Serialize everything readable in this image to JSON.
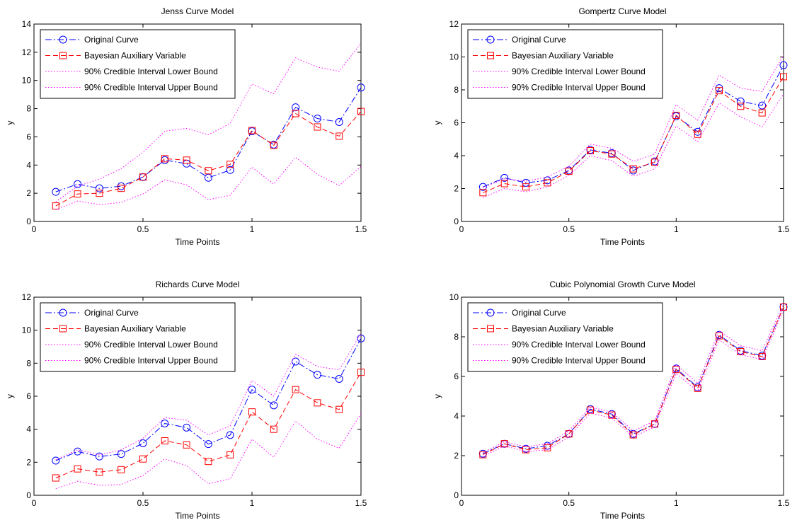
{
  "chart_data": [
    {
      "type": "line",
      "title": "Jenss Curve Model",
      "xlabel": "Time Points",
      "ylabel": "y",
      "xlim": [
        0,
        1.5
      ],
      "ylim": [
        0,
        14
      ],
      "xticks": [
        0,
        0.5,
        1,
        1.5
      ],
      "xtick_labels": [
        "0",
        "0.5",
        "1",
        "1.5"
      ],
      "yticks": [
        0,
        2,
        4,
        6,
        8,
        10,
        12,
        14
      ],
      "ytick_labels": [
        "0",
        "2",
        "4",
        "6",
        "8",
        "10",
        "12",
        "14"
      ],
      "grid": false,
      "legend_position": "top-left",
      "x": [
        0.1,
        0.2,
        0.3,
        0.4,
        0.5,
        0.6,
        0.7,
        0.8,
        0.9,
        1.0,
        1.1,
        1.2,
        1.3,
        1.4,
        1.5
      ],
      "series": [
        {
          "name": "Original Curve",
          "color": "#0000ff",
          "style": "dashdot",
          "marker": "circle",
          "values": [
            2.1,
            2.65,
            2.35,
            2.5,
            3.15,
            4.35,
            4.1,
            3.1,
            3.65,
            6.4,
            5.45,
            8.1,
            7.3,
            7.05,
            9.5
          ]
        },
        {
          "name": "Bayesian Auxiliary Variable",
          "color": "#ff0000",
          "style": "dashed",
          "marker": "square",
          "values": [
            1.1,
            1.95,
            2.0,
            2.35,
            3.15,
            4.45,
            4.35,
            3.6,
            4.05,
            6.45,
            5.4,
            7.65,
            6.7,
            6.05,
            7.8
          ]
        },
        {
          "name": "90% Credible Interval Lower Bound",
          "color": "#ff00ff",
          "style": "dotted",
          "marker": "none",
          "values": [
            0.85,
            1.45,
            1.2,
            1.35,
            1.95,
            2.95,
            2.6,
            1.55,
            1.85,
            3.85,
            2.65,
            4.55,
            3.35,
            2.55,
            3.9
          ]
        },
        {
          "name": "90% Credible Interval Upper Bound",
          "color": "#ff00ff",
          "style": "dotted",
          "marker": "none",
          "values": [
            1.4,
            2.5,
            3.0,
            3.75,
            4.9,
            6.4,
            6.6,
            6.15,
            6.95,
            9.75,
            9.05,
            11.6,
            10.95,
            10.65,
            12.65
          ]
        }
      ]
    },
    {
      "type": "line",
      "title": "Gompertz Curve Model",
      "xlabel": "Time Points",
      "ylabel": "y",
      "xlim": [
        0,
        1.5
      ],
      "ylim": [
        0,
        12
      ],
      "xticks": [
        0,
        0.5,
        1,
        1.5
      ],
      "xtick_labels": [
        "0",
        "0.5",
        "1",
        "1.5"
      ],
      "yticks": [
        0,
        2,
        4,
        6,
        8,
        10,
        12
      ],
      "ytick_labels": [
        "0",
        "2",
        "4",
        "6",
        "8",
        "10",
        "12"
      ],
      "grid": false,
      "legend_position": "top-left",
      "x": [
        0.1,
        0.2,
        0.3,
        0.4,
        0.5,
        0.6,
        0.7,
        0.8,
        0.9,
        1.0,
        1.1,
        1.2,
        1.3,
        1.4,
        1.5
      ],
      "series": [
        {
          "name": "Original Curve",
          "color": "#0000ff",
          "style": "dashdot",
          "marker": "circle",
          "values": [
            2.1,
            2.65,
            2.35,
            2.5,
            3.1,
            4.35,
            4.15,
            3.1,
            3.65,
            6.4,
            5.45,
            8.1,
            7.3,
            7.05,
            9.5
          ]
        },
        {
          "name": "Bayesian Auxiliary Variable",
          "color": "#ff0000",
          "style": "dashed",
          "marker": "square",
          "values": [
            1.75,
            2.3,
            2.1,
            2.35,
            3.05,
            4.3,
            4.1,
            3.2,
            3.6,
            6.45,
            5.3,
            7.95,
            7.0,
            6.6,
            8.8
          ]
        },
        {
          "name": "90% Credible Interval Lower Bound",
          "color": "#ff00ff",
          "style": "dotted",
          "marker": "none",
          "values": [
            1.45,
            2.0,
            1.8,
            2.1,
            2.8,
            4.0,
            3.7,
            2.75,
            3.2,
            5.8,
            4.85,
            7.2,
            6.35,
            5.75,
            7.75
          ]
        },
        {
          "name": "90% Credible Interval Upper Bound",
          "color": "#ff00ff",
          "style": "dotted",
          "marker": "none",
          "values": [
            2.05,
            2.6,
            2.45,
            2.7,
            3.35,
            4.7,
            4.45,
            3.65,
            4.1,
            7.1,
            6.15,
            8.9,
            8.1,
            7.9,
            10.1
          ]
        }
      ]
    },
    {
      "type": "line",
      "title": "Richards Curve Model",
      "xlabel": "Time Points",
      "ylabel": "y",
      "xlim": [
        0,
        1.5
      ],
      "ylim": [
        0,
        12
      ],
      "xticks": [
        0,
        0.5,
        1,
        1.5
      ],
      "xtick_labels": [
        "0",
        "0.5",
        "1",
        "1.5"
      ],
      "yticks": [
        0,
        2,
        4,
        6,
        8,
        10,
        12
      ],
      "ytick_labels": [
        "0",
        "2",
        "4",
        "6",
        "8",
        "10",
        "12"
      ],
      "grid": false,
      "legend_position": "top-left",
      "x": [
        0.1,
        0.2,
        0.3,
        0.4,
        0.5,
        0.6,
        0.7,
        0.8,
        0.9,
        1.0,
        1.1,
        1.2,
        1.3,
        1.4,
        1.5
      ],
      "series": [
        {
          "name": "Original Curve",
          "color": "#0000ff",
          "style": "dashdot",
          "marker": "circle",
          "values": [
            2.1,
            2.65,
            2.35,
            2.5,
            3.15,
            4.35,
            4.1,
            3.1,
            3.65,
            6.4,
            5.45,
            8.1,
            7.3,
            7.05,
            9.5
          ]
        },
        {
          "name": "Bayesian Auxiliary Variable",
          "color": "#ff0000",
          "style": "dashed",
          "marker": "square",
          "values": [
            1.05,
            1.6,
            1.4,
            1.55,
            2.2,
            3.3,
            3.05,
            2.05,
            2.45,
            5.05,
            4.0,
            6.4,
            5.6,
            5.2,
            7.45
          ]
        },
        {
          "name": "90% Credible Interval Lower Bound",
          "color": "#ff00ff",
          "style": "dotted",
          "marker": "none",
          "values": [
            0.4,
            0.85,
            0.6,
            0.65,
            1.2,
            2.2,
            1.8,
            0.7,
            1.0,
            3.4,
            2.3,
            4.5,
            3.4,
            2.85,
            4.95
          ]
        },
        {
          "name": "90% Credible Interval Upper Bound",
          "color": "#ff00ff",
          "style": "dotted",
          "marker": "none",
          "values": [
            2.15,
            2.75,
            2.45,
            2.75,
            3.45,
            4.7,
            4.55,
            3.65,
            4.2,
            6.95,
            6.0,
            8.55,
            7.8,
            7.6,
            9.8
          ]
        }
      ]
    },
    {
      "type": "line",
      "title": "Cubic Polynomial Growth Curve Model",
      "xlabel": "Time Points",
      "ylabel": "y",
      "xlim": [
        0,
        1.5
      ],
      "ylim": [
        0,
        10
      ],
      "xticks": [
        0,
        0.5,
        1,
        1.5
      ],
      "xtick_labels": [
        "0",
        "0.5",
        "1",
        "1.5"
      ],
      "yticks": [
        0,
        2,
        4,
        6,
        8,
        10
      ],
      "ytick_labels": [
        "0",
        "2",
        "4",
        "6",
        "8",
        "10"
      ],
      "grid": false,
      "legend_position": "top-left",
      "x": [
        0.1,
        0.2,
        0.3,
        0.4,
        0.5,
        0.6,
        0.7,
        0.8,
        0.9,
        1.0,
        1.1,
        1.2,
        1.3,
        1.4,
        1.5
      ],
      "series": [
        {
          "name": "Original Curve",
          "color": "#0000ff",
          "style": "dashdot",
          "marker": "circle",
          "values": [
            2.1,
            2.6,
            2.35,
            2.5,
            3.1,
            4.35,
            4.1,
            3.1,
            3.6,
            6.4,
            5.45,
            8.1,
            7.3,
            7.05,
            9.5
          ]
        },
        {
          "name": "Bayesian Auxiliary Variable",
          "color": "#ff0000",
          "style": "dashed",
          "marker": "square",
          "values": [
            2.05,
            2.6,
            2.3,
            2.4,
            3.1,
            4.3,
            4.05,
            3.05,
            3.6,
            6.35,
            5.4,
            8.05,
            7.25,
            7.0,
            9.5
          ]
        },
        {
          "name": "90% Credible Interval Lower Bound",
          "color": "#ff00ff",
          "style": "dotted",
          "marker": "none",
          "values": [
            1.95,
            2.5,
            2.2,
            2.3,
            2.95,
            4.15,
            3.9,
            2.95,
            3.45,
            6.15,
            5.25,
            7.85,
            7.1,
            6.85,
            9.35
          ]
        },
        {
          "name": "90% Credible Interval Upper Bound",
          "color": "#ff00ff",
          "style": "dotted",
          "marker": "none",
          "values": [
            2.15,
            2.7,
            2.45,
            2.6,
            3.25,
            4.45,
            4.2,
            3.25,
            3.75,
            6.6,
            5.65,
            8.3,
            7.55,
            7.3,
            9.65
          ]
        }
      ]
    }
  ]
}
